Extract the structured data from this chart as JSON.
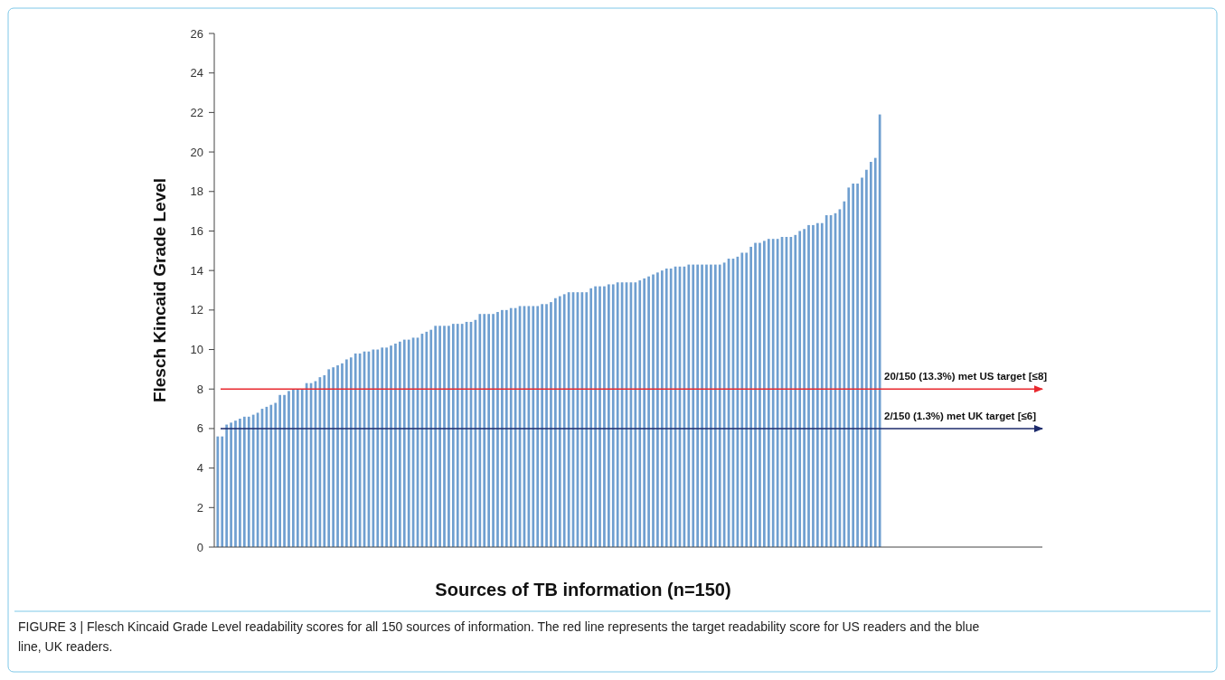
{
  "chart_data": {
    "type": "bar",
    "xlabel": "Sources of TB information (n=150)",
    "ylabel": "Flesch Kincaid Grade Level",
    "categories": [
      null,
      null,
      null,
      null,
      null,
      null,
      null,
      null,
      null,
      null,
      null,
      null,
      null,
      null,
      null,
      null,
      null,
      null,
      null,
      null,
      null,
      null,
      null,
      null,
      null,
      null,
      null,
      null,
      null,
      null,
      null,
      null,
      null,
      null,
      null,
      null,
      null,
      null,
      null,
      null,
      null,
      null,
      null,
      null,
      null,
      null,
      null,
      null,
      null,
      null,
      null,
      null,
      null,
      null,
      null,
      null,
      null,
      null,
      null,
      null,
      null,
      null,
      null,
      null,
      null,
      null,
      null,
      null,
      null,
      null,
      null,
      null,
      null,
      null,
      null,
      null,
      null,
      null,
      null,
      null,
      null,
      null,
      null,
      null,
      null,
      null,
      null,
      null,
      null,
      null,
      null,
      null,
      null,
      null,
      null,
      null,
      null,
      null,
      null,
      null,
      null,
      null,
      null,
      null,
      null,
      null,
      null,
      null,
      null,
      null,
      null,
      null,
      null,
      null,
      null,
      null,
      null,
      null,
      null,
      null,
      null,
      null,
      null,
      null,
      null,
      null,
      null,
      null,
      null,
      null,
      null,
      null,
      null,
      null,
      null,
      null,
      null,
      null,
      null,
      null,
      null,
      null,
      null,
      null,
      null,
      null,
      null,
      null,
      null,
      null
    ],
    "values": [
      5.6,
      5.6,
      6.2,
      6.3,
      6.4,
      6.5,
      6.6,
      6.6,
      6.7,
      6.8,
      7.0,
      7.1,
      7.2,
      7.3,
      7.7,
      7.7,
      7.9,
      8.0,
      8.0,
      8.0,
      8.3,
      8.3,
      8.4,
      8.6,
      8.7,
      9.0,
      9.1,
      9.2,
      9.3,
      9.5,
      9.6,
      9.8,
      9.8,
      9.9,
      9.9,
      10.0,
      10.0,
      10.1,
      10.1,
      10.2,
      10.3,
      10.4,
      10.5,
      10.5,
      10.6,
      10.6,
      10.8,
      10.9,
      11.0,
      11.2,
      11.2,
      11.2,
      11.2,
      11.3,
      11.3,
      11.3,
      11.4,
      11.4,
      11.5,
      11.8,
      11.8,
      11.8,
      11.8,
      11.9,
      12.0,
      12.0,
      12.1,
      12.1,
      12.2,
      12.2,
      12.2,
      12.2,
      12.2,
      12.3,
      12.3,
      12.4,
      12.6,
      12.7,
      12.8,
      12.9,
      12.9,
      12.9,
      12.9,
      12.9,
      13.1,
      13.2,
      13.2,
      13.2,
      13.3,
      13.3,
      13.4,
      13.4,
      13.4,
      13.4,
      13.4,
      13.5,
      13.6,
      13.7,
      13.8,
      13.9,
      14.0,
      14.1,
      14.1,
      14.2,
      14.2,
      14.2,
      14.3,
      14.3,
      14.3,
      14.3,
      14.3,
      14.3,
      14.3,
      14.3,
      14.4,
      14.6,
      14.6,
      14.7,
      14.9,
      14.9,
      15.2,
      15.4,
      15.4,
      15.5,
      15.6,
      15.6,
      15.6,
      15.7,
      15.7,
      15.7,
      15.8,
      16.0,
      16.1,
      16.3,
      16.3,
      16.4,
      16.4,
      16.8,
      16.8,
      16.9,
      17.1,
      17.5,
      18.2,
      18.4,
      18.4,
      18.7,
      19.1,
      19.5,
      19.7,
      21.9
    ],
    "color": "#6f9fd0",
    "ylim": [
      0,
      26
    ],
    "yticks": [
      0,
      2,
      4,
      6,
      8,
      10,
      12,
      14,
      16,
      18,
      20,
      22,
      24,
      26
    ],
    "ref_lines": [
      {
        "axis": "y",
        "value": 8,
        "label": "20/150 (13.3%) met US target [≤8]",
        "color": "#e8282e"
      },
      {
        "axis": "y",
        "value": 6,
        "label": "2/150 (1.3%) met UK target [≤6]",
        "color": "#1c2a6b"
      }
    ],
    "annotations": [
      "FIGURE 3 | Flesch Kincaid Grade Level readability scores for all 150 sources of information. The red line represents the target readability score for US readers and the blue line, UK readers."
    ]
  }
}
